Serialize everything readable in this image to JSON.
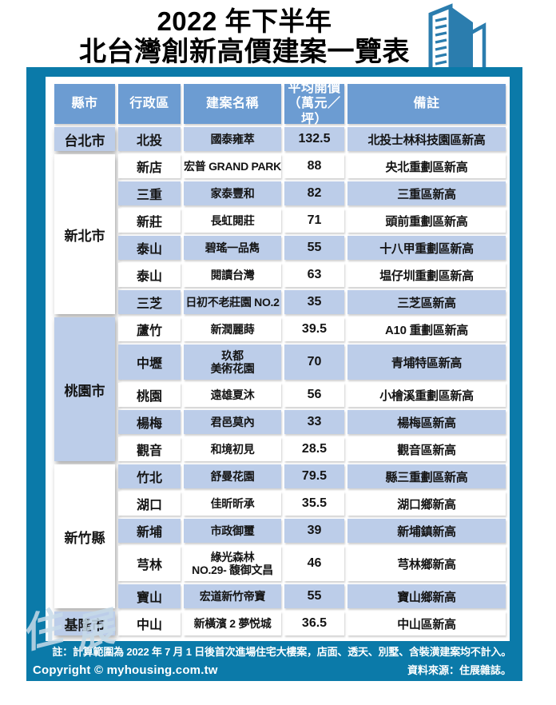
{
  "title": {
    "line1": "2022 年下半年",
    "line2": "北台灣創新高價建案一覽表"
  },
  "colors": {
    "frame_blue": "#0b7aa9",
    "header_blue": "#6c9cd2",
    "row_blue": "#bccde9",
    "icon_blue": "#2b7dae"
  },
  "table": {
    "columns": [
      "縣市",
      "行政區",
      "建案名稱",
      "平均開價\n（萬元／坪）",
      "備註"
    ],
    "groups": [
      {
        "county": "台北市",
        "rows": [
          {
            "district": "北投",
            "name": "國泰雍萃",
            "price": "132.5",
            "note": "北投士林科技園區新高"
          }
        ]
      },
      {
        "county": "新北市",
        "rows": [
          {
            "district": "新店",
            "name": "宏普 GRAND PARK",
            "price": "88",
            "note": "央北重劃區新高"
          },
          {
            "district": "三重",
            "name": "家泰豐和",
            "price": "82",
            "note": "三重區新高"
          },
          {
            "district": "新莊",
            "name": "長虹閱莊",
            "price": "71",
            "note": "頭前重劃區新高"
          },
          {
            "district": "泰山",
            "name": "碧瑤一品雋",
            "price": "55",
            "note": "十八甲重劃區新高"
          },
          {
            "district": "泰山",
            "name": "閱讀台灣",
            "price": "63",
            "note": "塭仔圳重劃區新高"
          },
          {
            "district": "三芝",
            "name": "日初不老莊園 NO.2",
            "price": "35",
            "note": "三芝區新高"
          }
        ]
      },
      {
        "county": "桃園市",
        "rows": [
          {
            "district": "蘆竹",
            "name": "新潤麗蒔",
            "price": "39.5",
            "note": "A10 重劃區新高"
          },
          {
            "district": "中壢",
            "name": "玖都\n美術花園",
            "price": "70",
            "note": "青埔特區新高"
          },
          {
            "district": "桃園",
            "name": "遠雄夏沐",
            "price": "56",
            "note": "小檜溪重劃區新高"
          },
          {
            "district": "楊梅",
            "name": "君邑莫內",
            "price": "33",
            "note": "楊梅區新高"
          },
          {
            "district": "觀音",
            "name": "和境初見",
            "price": "28.5",
            "note": "觀音區新高"
          }
        ]
      },
      {
        "county": "新竹縣",
        "rows": [
          {
            "district": "竹北",
            "name": "舒曼花園",
            "price": "79.5",
            "note": "縣三重劃區新高"
          },
          {
            "district": "湖口",
            "name": "佳昕昕承",
            "price": "35.5",
            "note": "湖口鄉新高"
          },
          {
            "district": "新埔",
            "name": "市政御璽",
            "price": "39",
            "note": "新埔鎮新高"
          },
          {
            "district": "芎林",
            "name": "綠光森林\nNO.29- 馥御文昌",
            "price": "46",
            "note": "芎林鄉新高"
          },
          {
            "district": "寶山",
            "name": "宏道新竹帝寶",
            "price": "55",
            "note": "寶山鄉新高"
          }
        ]
      },
      {
        "county": "基隆市",
        "rows": [
          {
            "district": "中山",
            "name": "新橫濱 2 夢悦城",
            "price": "36.5",
            "note": "中山區新高"
          }
        ]
      }
    ]
  },
  "footer": {
    "note": "註：計算範圍為 2022 年 7 月 1 日後首次進場住宅大樓案，店面、透天、別墅、含裝潢建案均不計入。",
    "copyright": "Copyright © myhousing.com.tw",
    "source": "資料來源：住展雜誌。"
  },
  "watermark": {
    "char1": "住",
    "char2": "展"
  },
  "chart_data": {
    "type": "table",
    "title": "2022 年下半年 北台灣創新高價建案一覽表",
    "columns": [
      "縣市",
      "行政區",
      "建案名稱",
      "平均開價（萬元／坪）",
      "備註"
    ],
    "rows": [
      [
        "台北市",
        "北投",
        "國泰雍萃",
        132.5,
        "北投士林科技園區新高"
      ],
      [
        "新北市",
        "新店",
        "宏普 GRAND PARK",
        88,
        "央北重劃區新高"
      ],
      [
        "新北市",
        "三重",
        "家泰豐和",
        82,
        "三重區新高"
      ],
      [
        "新北市",
        "新莊",
        "長虹閱莊",
        71,
        "頭前重劃區新高"
      ],
      [
        "新北市",
        "泰山",
        "碧瑤一品雋",
        55,
        "十八甲重劃區新高"
      ],
      [
        "新北市",
        "泰山",
        "閱讀台灣",
        63,
        "塭仔圳重劃區新高"
      ],
      [
        "新北市",
        "三芝",
        "日初不老莊園 NO.2",
        35,
        "三芝區新高"
      ],
      [
        "桃園市",
        "蘆竹",
        "新潤麗蒔",
        39.5,
        "A10 重劃區新高"
      ],
      [
        "桃園市",
        "中壢",
        "玖都美術花園",
        70,
        "青埔特區新高"
      ],
      [
        "桃園市",
        "桃園",
        "遠雄夏沐",
        56,
        "小檜溪重劃區新高"
      ],
      [
        "桃園市",
        "楊梅",
        "君邑莫內",
        33,
        "楊梅區新高"
      ],
      [
        "桃園市",
        "觀音",
        "和境初見",
        28.5,
        "觀音區新高"
      ],
      [
        "新竹縣",
        "竹北",
        "舒曼花園",
        79.5,
        "縣三重劃區新高"
      ],
      [
        "新竹縣",
        "湖口",
        "佳昕昕承",
        35.5,
        "湖口鄉新高"
      ],
      [
        "新竹縣",
        "新埔",
        "市政御璽",
        39,
        "新埔鎮新高"
      ],
      [
        "新竹縣",
        "芎林",
        "綠光森林 NO.29- 馥御文昌",
        46,
        "芎林鄉新高"
      ],
      [
        "新竹縣",
        "寶山",
        "宏道新竹帝寶",
        55,
        "寶山鄉新高"
      ],
      [
        "基隆市",
        "中山",
        "新橫濱 2 夢悦城",
        36.5,
        "中山區新高"
      ]
    ],
    "note": "計算範圍為 2022 年 7 月 1 日後首次進場住宅大樓案，店面、透天、別墅、含裝潢建案均不計入。",
    "source": "住展雜誌"
  }
}
